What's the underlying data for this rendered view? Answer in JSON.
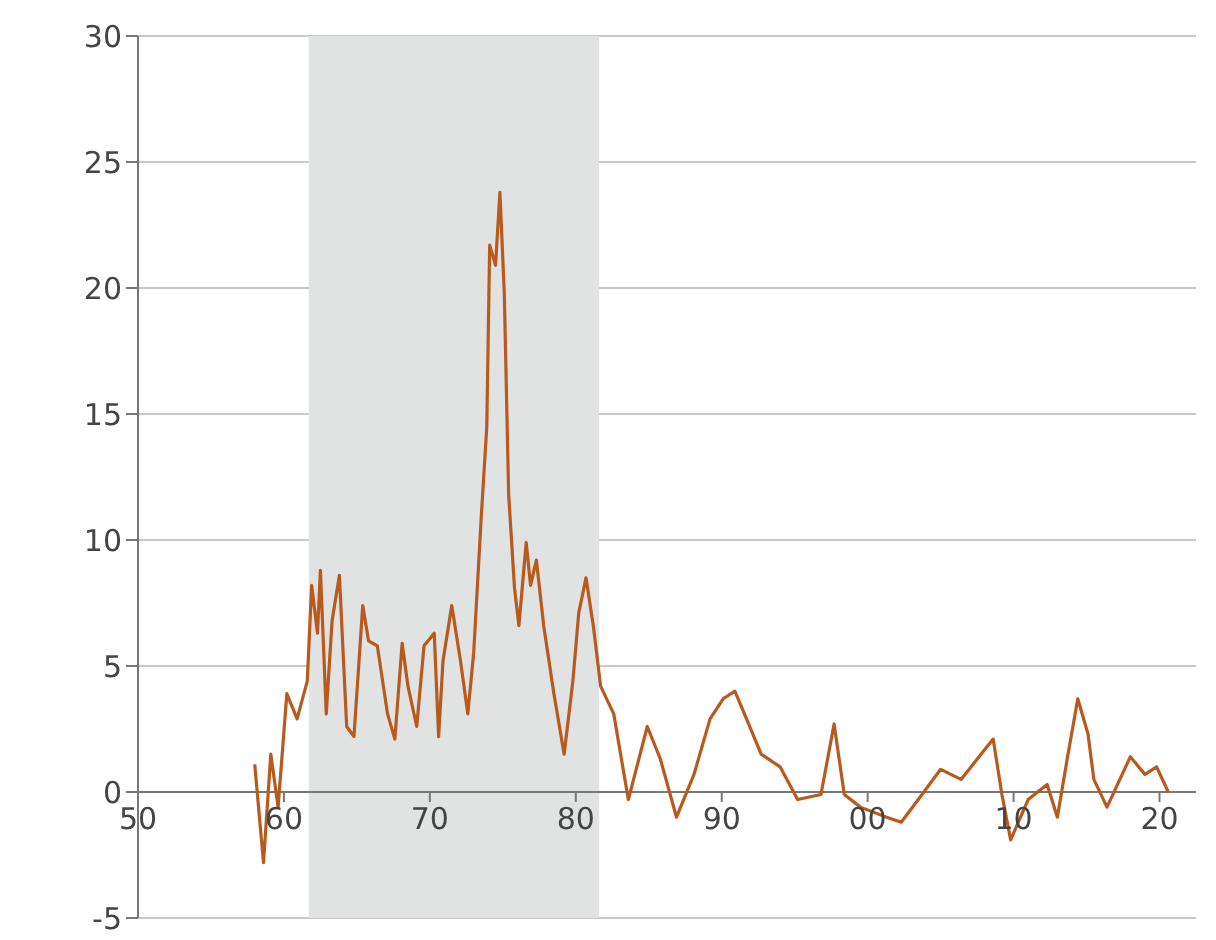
{
  "chart_data": {
    "type": "line",
    "x": [
      1958.0,
      1958.6,
      1959.1,
      1959.6,
      1960.2,
      1960.9,
      1961.6,
      1961.9,
      1962.3,
      1962.5,
      1962.9,
      1963.3,
      1963.8,
      1964.3,
      1964.8,
      1965.4,
      1965.8,
      1966.4,
      1967.1,
      1967.6,
      1968.1,
      1968.5,
      1969.1,
      1969.6,
      1970.3,
      1970.6,
      1970.9,
      1971.5,
      1972.1,
      1972.6,
      1973.0,
      1973.5,
      1973.9,
      1974.1,
      1974.5,
      1974.8,
      1975.1,
      1975.4,
      1975.8,
      1976.1,
      1976.6,
      1976.9,
      1977.3,
      1977.8,
      1978.5,
      1979.2,
      1979.8,
      1980.2,
      1980.7,
      1981.2,
      1981.7,
      1982.6,
      1983.6,
      1984.9,
      1985.8,
      1986.9,
      1988.1,
      1989.2,
      1990.1,
      1990.9,
      1991.7,
      1992.7,
      1994.0,
      1995.2,
      1996.8,
      1997.7,
      1998.4,
      1999.5,
      2001.3,
      2002.3,
      2003.6,
      2005.0,
      2006.4,
      2007.5,
      2008.6,
      2009.2,
      2009.8,
      2011.0,
      2012.3,
      2013.0,
      2013.7,
      2014.4,
      2015.1,
      2015.5,
      2016.4,
      2018.0,
      2019.0,
      2019.8,
      2020.6
    ],
    "series": [
      {
        "color": "#b85a1e",
        "values": [
          1.1,
          -2.8,
          1.5,
          -0.6,
          3.9,
          2.9,
          4.4,
          8.2,
          6.3,
          8.8,
          3.1,
          6.8,
          8.6,
          2.6,
          2.2,
          7.4,
          6.0,
          5.8,
          3.1,
          2.1,
          5.9,
          4.2,
          2.6,
          5.8,
          6.3,
          2.2,
          5.2,
          7.4,
          5.2,
          3.1,
          5.5,
          10.7,
          14.5,
          21.7,
          20.9,
          23.8,
          19.8,
          11.8,
          8.1,
          6.6,
          9.9,
          8.2,
          9.2,
          6.6,
          3.9,
          1.5,
          4.4,
          7.1,
          8.5,
          6.6,
          4.2,
          3.1,
          -0.3,
          2.6,
          1.3,
          -1.0,
          0.7,
          2.9,
          3.7,
          4.0,
          2.9,
          1.5,
          1.0,
          -0.3,
          -0.1,
          2.7,
          -0.1,
          -0.6,
          -1.0,
          -1.2,
          -0.2,
          0.9,
          0.5,
          1.3,
          2.1,
          -0.1,
          -1.9,
          -0.3,
          0.3,
          -1.0,
          1.4,
          3.7,
          2.3,
          0.5,
          -0.6,
          1.4,
          0.7,
          1.0,
          0.0
        ]
      }
    ],
    "xlim": [
      1950,
      2022.5
    ],
    "xticks": [
      {
        "value": 1950,
        "label": "50"
      },
      {
        "value": 1960,
        "label": "60"
      },
      {
        "value": 1970,
        "label": "70"
      },
      {
        "value": 1980,
        "label": "80"
      },
      {
        "value": 1990,
        "label": "90"
      },
      {
        "value": 2000,
        "label": "00"
      },
      {
        "value": 2010,
        "label": "10"
      },
      {
        "value": 2020,
        "label": "20"
      }
    ],
    "ylim": [
      -5,
      30
    ],
    "yticks": [
      -5,
      0,
      5,
      10,
      15,
      20,
      25,
      30
    ],
    "bands": [
      {
        "axis": "x",
        "from": 1961.7,
        "to": 1981.6,
        "color": "#e1e3e3"
      }
    ],
    "grid": "y",
    "marker": "none",
    "line_style": "solid"
  }
}
